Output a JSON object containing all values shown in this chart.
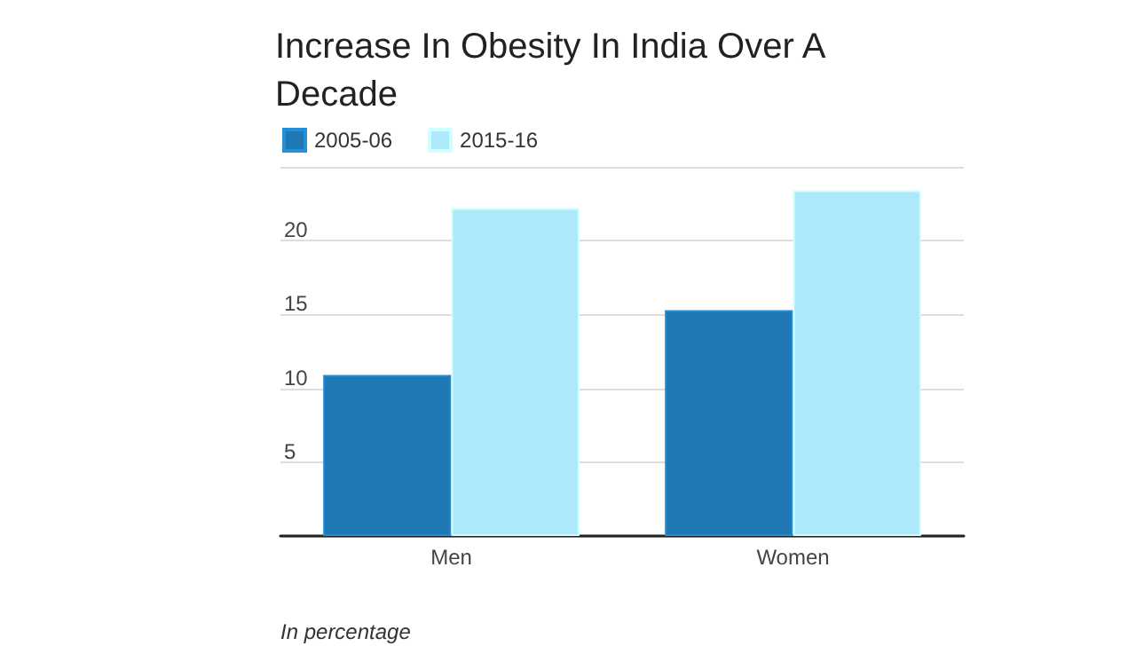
{
  "chart_data": {
    "type": "bar",
    "title": "Increase In Obesity In India Over A Decade",
    "categories": [
      "Men",
      "Women"
    ],
    "series": [
      {
        "name": "2005-06",
        "color": "#1f77b4",
        "values": [
          10.9,
          15.3
        ]
      },
      {
        "name": "2015-16",
        "color": "#aee9fb",
        "values": [
          22.2,
          23.4
        ]
      }
    ],
    "ylim": [
      0,
      25
    ],
    "yticks": [
      {
        "value": 0,
        "label": null
      },
      5,
      10,
      15,
      20,
      {
        "value": 25,
        "label": null
      }
    ],
    "grid": "y",
    "legend": "top left",
    "annotations": [
      "In percentage"
    ]
  }
}
